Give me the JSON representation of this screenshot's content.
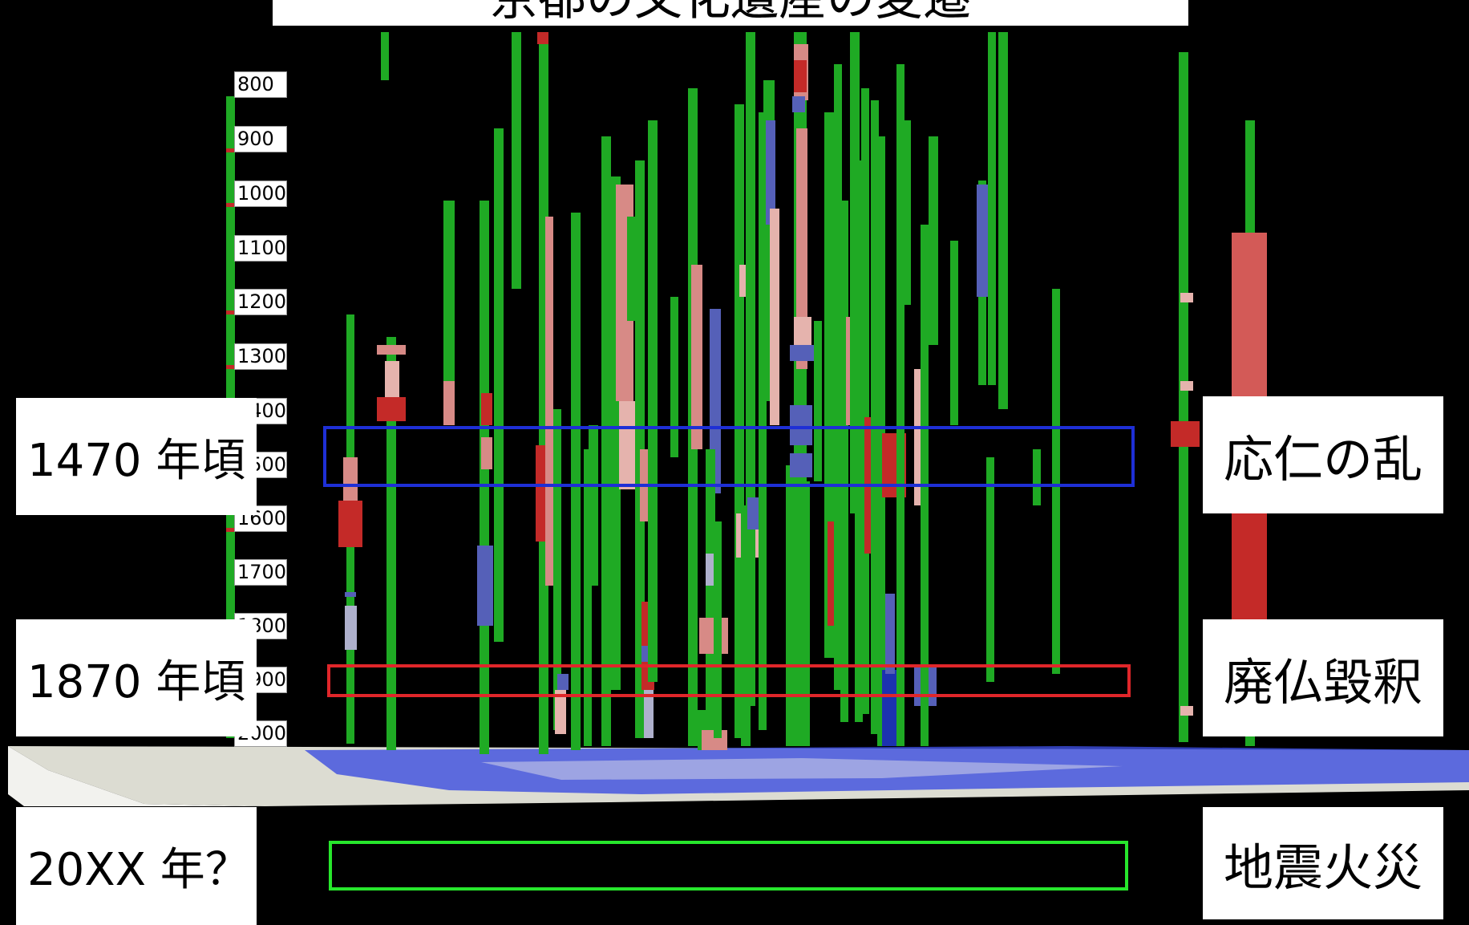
{
  "title": "京都の文化遺産の変遷",
  "timeline": {
    "ticks": [
      "800",
      "900",
      "1000",
      "1100",
      "1200",
      "1300",
      "1400",
      "1500",
      "1600",
      "1700",
      "1800",
      "1900",
      "2000"
    ]
  },
  "events": [
    {
      "period": "1470 年頃",
      "name": "応仁の乱",
      "box_color": "#1e2fd6"
    },
    {
      "period": "1870 年頃",
      "name": "廃仏毀釈",
      "box_color": "#e0262a"
    },
    {
      "period": "20XX 年？",
      "name": "地震火災",
      "box_color": "#27e62c"
    }
  ],
  "colors": {
    "background": "#000000",
    "pillar": "#1faa24",
    "segment_red": "#c42a28",
    "segment_pink": "#d78a86",
    "segment_light_pink": "#e5b3ad",
    "segment_blue": "#5560b8",
    "ground_map": "#dcdcd2",
    "ground_water": "#3c4ee0"
  }
}
